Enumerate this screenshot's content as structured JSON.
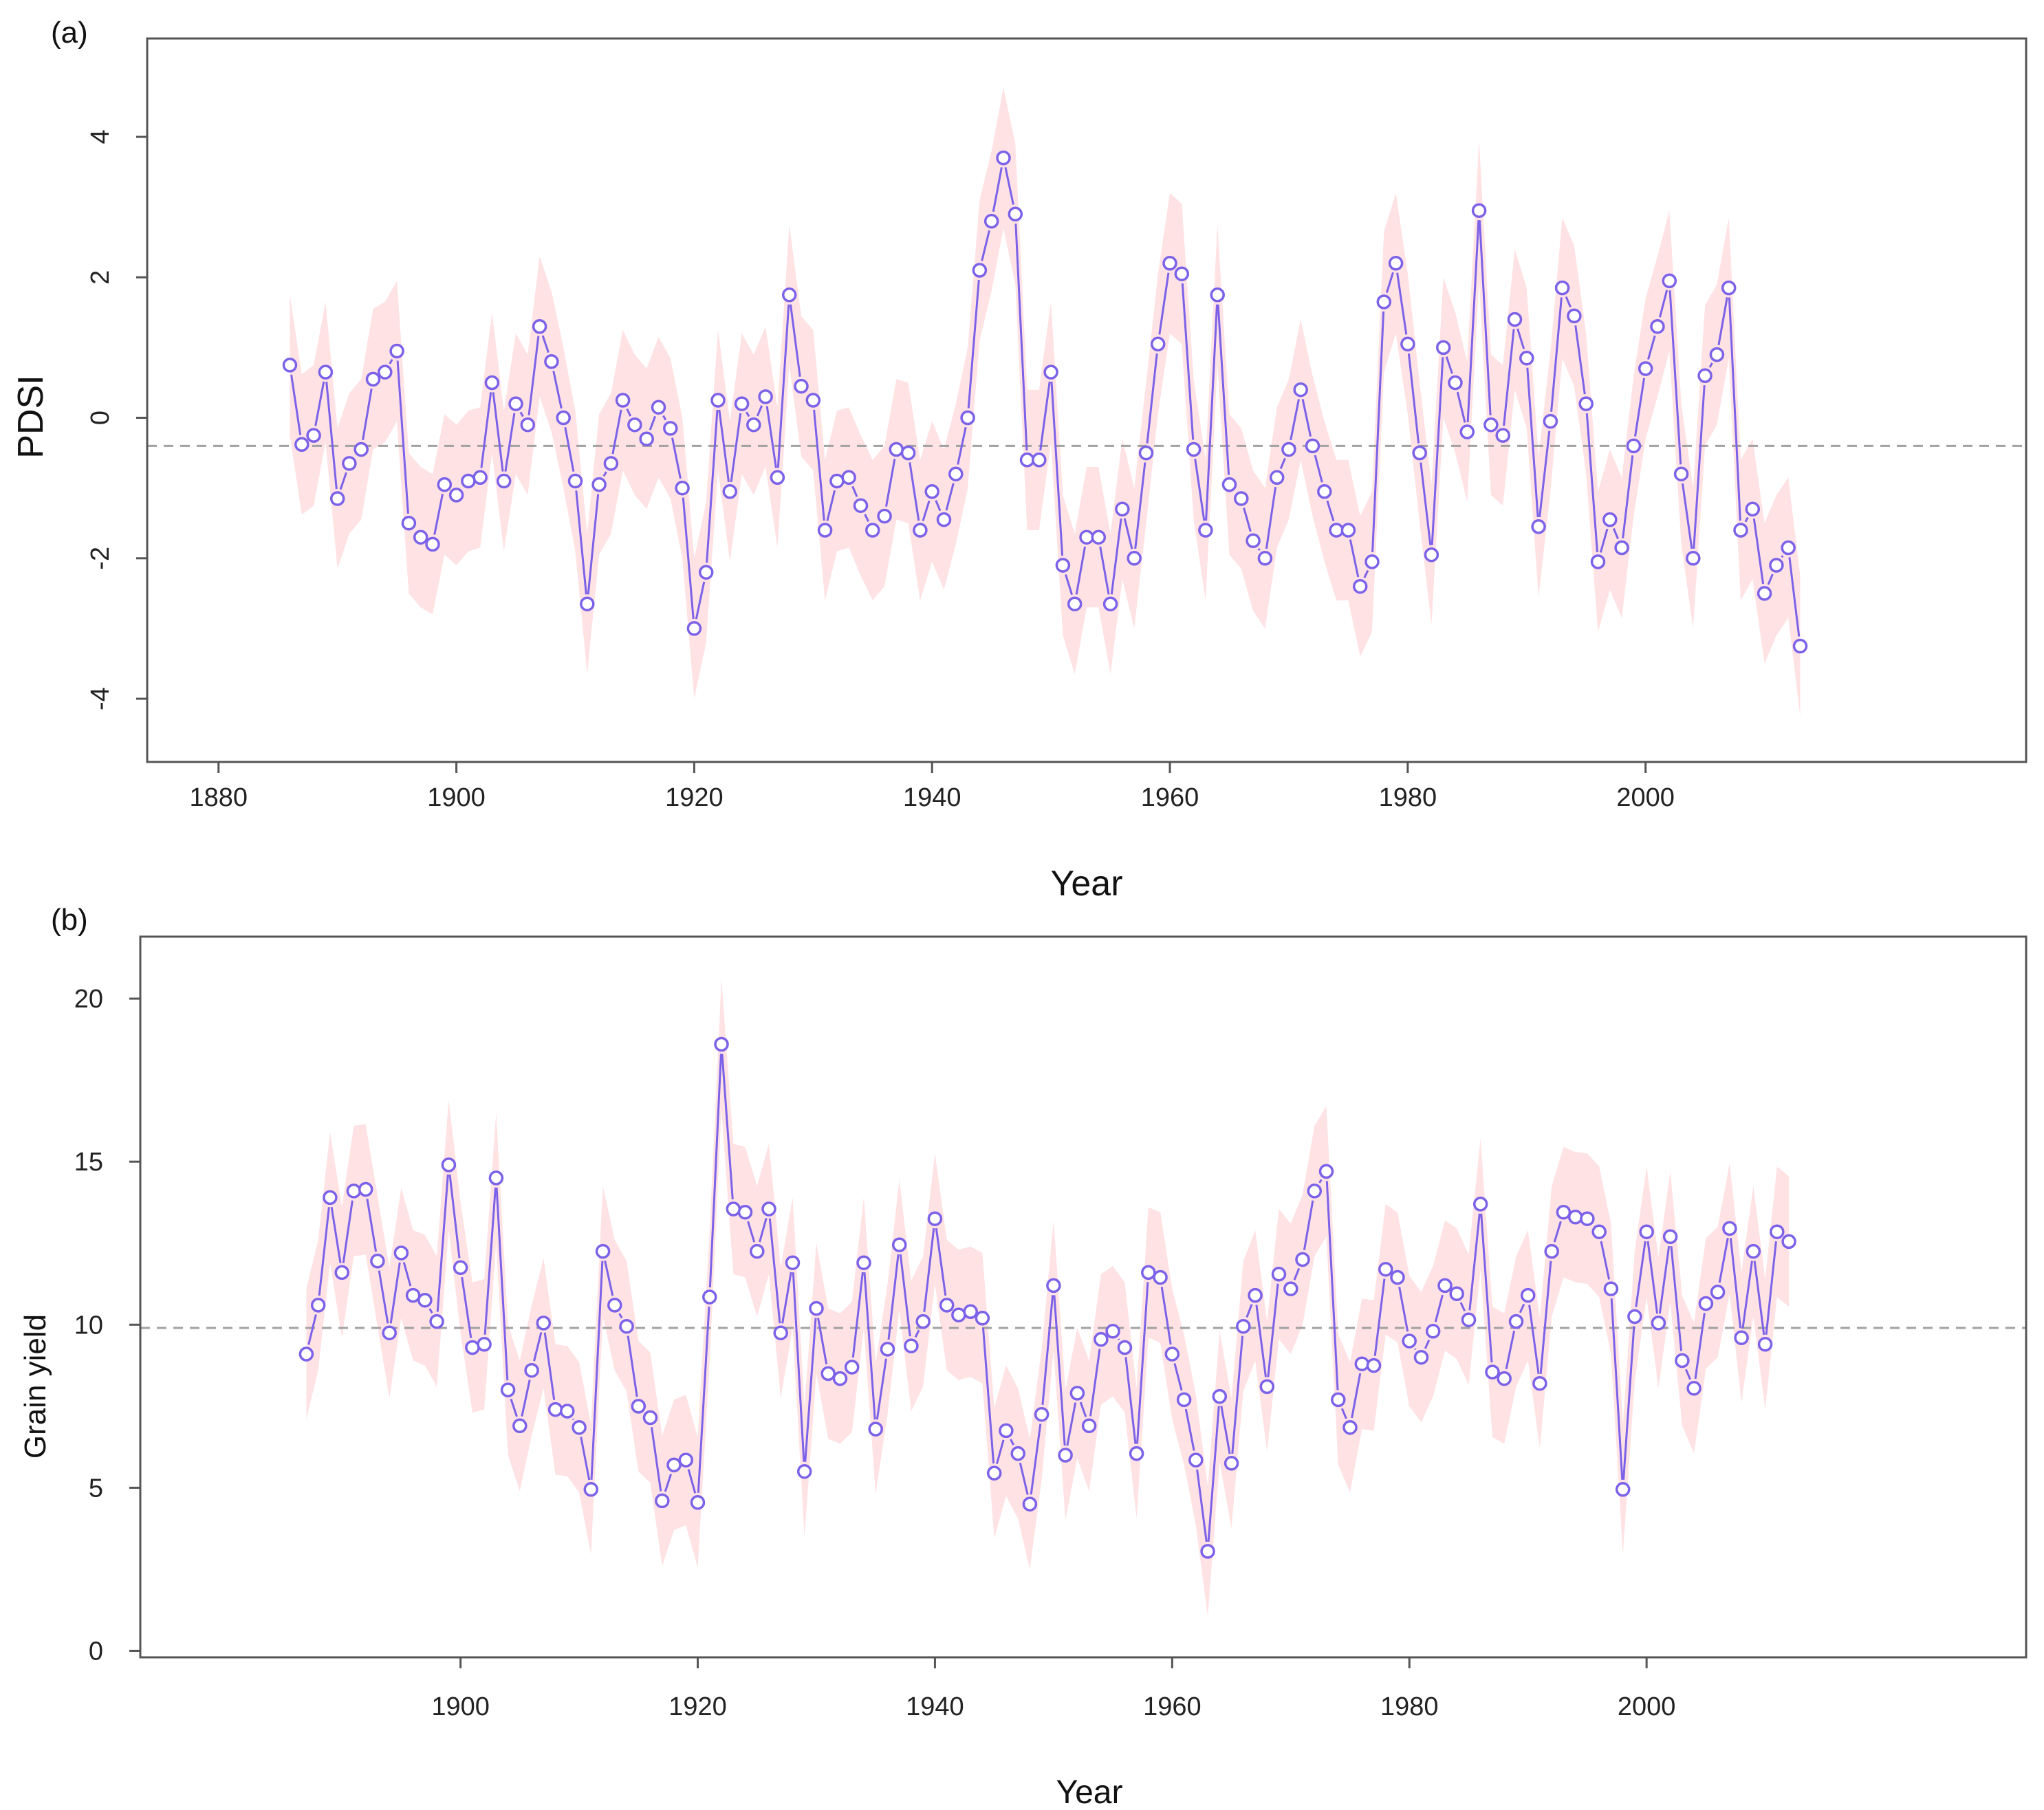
{
  "chart_data": [
    {
      "type": "line",
      "panel_label": "(a)",
      "xlabel": "Year",
      "ylabel": "PDSI",
      "xlim": [
        1874,
        2032
      ],
      "ylim": [
        -4.9,
        5.4
      ],
      "xticks": [
        1880,
        1900,
        1920,
        1940,
        1960,
        1980,
        2000
      ],
      "yticks": [
        -4,
        -2,
        0,
        2,
        4
      ],
      "ytick_labels": [
        "-4",
        "-2",
        "0",
        "2",
        "4"
      ],
      "reference_line": -0.4,
      "band_halfwidth": 1.0,
      "colors": {
        "line": "#7b62e8",
        "band": "#ffe2e4",
        "reference": "#a0a0a0",
        "axis": "#555555"
      },
      "series": [
        {
          "name": "PDSI",
          "x": [
            1886,
            1887,
            1888,
            1889,
            1890,
            1891,
            1892,
            1893,
            1894,
            1895,
            1896,
            1897,
            1898,
            1899,
            1900,
            1901,
            1902,
            1903,
            1904,
            1905,
            1906,
            1907,
            1908,
            1909,
            1910,
            1911,
            1912,
            1913,
            1914,
            1915,
            1916,
            1917,
            1918,
            1919,
            1920,
            1921,
            1922,
            1923,
            1924,
            1925,
            1926,
            1927,
            1928,
            1929,
            1930,
            1931,
            1932,
            1933,
            1934,
            1935,
            1936,
            1937,
            1938,
            1939,
            1940,
            1941,
            1942,
            1943,
            1944,
            1945,
            1946,
            1947,
            1948,
            1949,
            1950,
            1951,
            1952,
            1953,
            1954,
            1955,
            1956,
            1957,
            1958,
            1959,
            1960,
            1961,
            1962,
            1963,
            1964,
            1965,
            1966,
            1967,
            1968,
            1969,
            1970,
            1971,
            1972,
            1973,
            1974,
            1975,
            1976,
            1977,
            1978,
            1979,
            1980,
            1981,
            1982,
            1983,
            1984,
            1985,
            1986,
            1987,
            1988,
            1989,
            1990,
            1991,
            1992,
            1993,
            1994,
            1995,
            1996,
            1997,
            1998,
            1999,
            2000,
            2001,
            2002,
            2003,
            2004,
            2005,
            2006,
            2007,
            2008,
            2009,
            2010,
            2011,
            2012,
            2013
          ],
          "y": [
            0.75,
            -0.38,
            -0.25,
            0.65,
            -1.15,
            -0.65,
            -0.45,
            0.55,
            0.65,
            0.95,
            -1.5,
            -1.7,
            -1.8,
            -0.95,
            -1.1,
            -0.9,
            -0.85,
            0.5,
            -0.9,
            0.2,
            -0.1,
            1.3,
            0.8,
            0.0,
            -0.9,
            -2.65,
            -0.95,
            -0.65,
            0.25,
            -0.1,
            -0.3,
            0.15,
            -0.15,
            -1.0,
            -3.0,
            -2.2,
            0.25,
            -1.05,
            0.2,
            -0.1,
            0.3,
            -0.85,
            1.75,
            0.45,
            0.25,
            -1.6,
            -0.9,
            -0.85,
            -1.25,
            -1.6,
            -1.4,
            -0.45,
            -0.5,
            -1.6,
            -1.05,
            -1.45,
            -0.8,
            0.0,
            2.1,
            2.8,
            3.7,
            2.9,
            -0.6,
            -0.6,
            0.65,
            -2.1,
            -2.65,
            -1.7,
            -1.7,
            -2.65,
            -1.3,
            -2.0,
            -0.5,
            1.05,
            2.2,
            2.05,
            -0.45,
            -1.6,
            1.75,
            -0.95,
            -1.15,
            -1.75,
            -2.0,
            -0.85,
            -0.45,
            0.4,
            -0.4,
            -1.05,
            -1.6,
            -1.6,
            -2.4,
            -2.05,
            1.65,
            2.2,
            1.05,
            -0.5,
            -1.95,
            1.0,
            0.5,
            -0.2,
            2.95,
            -0.1,
            -0.25,
            1.4,
            0.85,
            -1.55,
            -0.05,
            1.85,
            1.45,
            0.2,
            -2.05,
            -1.45,
            -1.85,
            -0.4,
            0.7,
            1.3,
            1.95,
            -0.8,
            -2.0,
            0.6,
            0.9,
            1.85,
            -1.6,
            -1.3,
            -2.5,
            -2.1,
            -1.85,
            -3.25
          ]
        }
      ]
    },
    {
      "type": "line",
      "panel_label": "(b)",
      "xlabel": "Year",
      "ylabel": "Grain yield",
      "xlim": [
        1873,
        2032
      ],
      "ylim": [
        -0.2,
        21.9
      ],
      "xticks": [
        1900,
        1920,
        1940,
        1960,
        1980,
        2000
      ],
      "yticks": [
        0,
        5,
        10,
        15,
        20
      ],
      "ytick_labels": [
        "0",
        "5",
        "10",
        "15",
        "20"
      ],
      "reference_line": 9.9,
      "band_halfwidth": 2.0,
      "colors": {
        "line": "#7b62e8",
        "band": "#ffe2e4",
        "reference": "#a0a0a0",
        "axis": "#555555"
      },
      "series": [
        {
          "name": "Grain yield",
          "x": [
            1887,
            1888,
            1889,
            1890,
            1891,
            1892,
            1893,
            1894,
            1895,
            1896,
            1897,
            1898,
            1899,
            1900,
            1901,
            1902,
            1903,
            1904,
            1905,
            1906,
            1907,
            1908,
            1909,
            1910,
            1911,
            1912,
            1913,
            1914,
            1915,
            1916,
            1917,
            1918,
            1919,
            1920,
            1921,
            1922,
            1923,
            1924,
            1925,
            1926,
            1927,
            1928,
            1929,
            1930,
            1931,
            1932,
            1933,
            1934,
            1935,
            1936,
            1937,
            1938,
            1939,
            1940,
            1941,
            1942,
            1943,
            1944,
            1945,
            1946,
            1947,
            1948,
            1949,
            1950,
            1951,
            1952,
            1953,
            1954,
            1955,
            1956,
            1957,
            1958,
            1959,
            1960,
            1961,
            1962,
            1963,
            1964,
            1965,
            1966,
            1967,
            1968,
            1969,
            1970,
            1971,
            1972,
            1973,
            1974,
            1975,
            1976,
            1977,
            1978,
            1979,
            1980,
            1981,
            1982,
            1983,
            1984,
            1985,
            1986,
            1987,
            1988,
            1989,
            1990,
            1991,
            1992,
            1993,
            1994,
            1995,
            1996,
            1997,
            1998,
            1999,
            2000,
            2001,
            2002,
            2003,
            2004,
            2005,
            2006,
            2007,
            2008,
            2009,
            2010,
            2011,
            2012
          ],
          "y": [
            9.1,
            10.6,
            13.9,
            11.6,
            14.1,
            14.15,
            11.95,
            9.75,
            12.2,
            10.9,
            10.75,
            10.1,
            14.9,
            11.75,
            9.3,
            9.4,
            14.5,
            8.0,
            6.9,
            8.6,
            10.05,
            7.4,
            7.35,
            6.85,
            4.95,
            12.25,
            10.6,
            9.95,
            7.5,
            7.15,
            4.6,
            5.7,
            5.85,
            4.55,
            10.85,
            18.6,
            13.55,
            13.45,
            12.25,
            13.55,
            9.75,
            11.9,
            5.5,
            10.5,
            8.5,
            8.35,
            8.7,
            11.9,
            6.8,
            9.25,
            12.45,
            9.35,
            10.1,
            13.25,
            10.6,
            10.3,
            10.4,
            10.2,
            5.45,
            6.75,
            6.05,
            4.5,
            7.25,
            11.2,
            6.0,
            7.9,
            6.9,
            9.55,
            9.8,
            9.3,
            6.05,
            11.6,
            11.45,
            9.1,
            7.7,
            5.85,
            3.05,
            7.8,
            5.75,
            9.95,
            10.9,
            8.1,
            11.55,
            11.1,
            12.0,
            14.1,
            14.7,
            7.7,
            6.85,
            8.8,
            8.75,
            11.7,
            11.45,
            9.5,
            9.0,
            9.8,
            11.2,
            10.95,
            10.15,
            13.7,
            8.55,
            8.35,
            10.1,
            10.9,
            8.2,
            12.25,
            13.45,
            13.3,
            13.25,
            12.85,
            11.1,
            4.95,
            10.25,
            12.85,
            10.05,
            12.7,
            8.9,
            8.05,
            10.65,
            11.0,
            12.95,
            9.6,
            12.25,
            9.4,
            12.85,
            12.55
          ]
        }
      ]
    }
  ]
}
